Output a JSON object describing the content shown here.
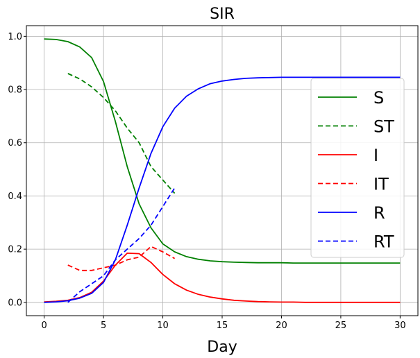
{
  "chart_data": {
    "type": "line",
    "title": "SIR",
    "xlabel": "Day",
    "ylabel": "",
    "xlim": [
      -1.5,
      31.5
    ],
    "ylim": [
      -0.05,
      1.04
    ],
    "xticks": [
      0,
      5,
      10,
      15,
      20,
      25,
      30
    ],
    "xtick_labels": [
      "0",
      "5",
      "10",
      "15",
      "20",
      "25",
      "30"
    ],
    "yticks": [
      0.0,
      0.2,
      0.4,
      0.6,
      0.8,
      1.0
    ],
    "ytick_labels": [
      "0.0",
      "0.2",
      "0.4",
      "0.6",
      "0.8",
      "1.0"
    ],
    "grid": true,
    "legend_position": "right",
    "series": [
      {
        "name": "S",
        "color": "#008000",
        "style": "solid",
        "x": [
          0,
          1,
          2,
          3,
          4,
          5,
          6,
          7,
          8,
          9,
          10,
          11,
          12,
          13,
          14,
          15,
          16,
          17,
          18,
          19,
          20,
          21,
          22,
          23,
          24,
          25,
          26,
          27,
          28,
          29,
          30
        ],
        "y": [
          0.99,
          0.988,
          0.98,
          0.96,
          0.92,
          0.83,
          0.68,
          0.51,
          0.37,
          0.28,
          0.22,
          0.19,
          0.172,
          0.162,
          0.156,
          0.153,
          0.151,
          0.15,
          0.149,
          0.149,
          0.149,
          0.148,
          0.148,
          0.148,
          0.148,
          0.148,
          0.148,
          0.148,
          0.148,
          0.148,
          0.148
        ]
      },
      {
        "name": "ST",
        "color": "#008000",
        "style": "dashed",
        "x": [
          2,
          3,
          4,
          5,
          6,
          7,
          8,
          9,
          10,
          11
        ],
        "y": [
          0.86,
          0.84,
          0.81,
          0.77,
          0.72,
          0.655,
          0.6,
          0.51,
          0.46,
          0.41
        ]
      },
      {
        "name": "I",
        "color": "#ff0000",
        "style": "solid",
        "x": [
          0,
          1,
          2,
          3,
          4,
          5,
          6,
          7,
          8,
          9,
          10,
          11,
          12,
          13,
          14,
          15,
          16,
          17,
          18,
          19,
          20,
          21,
          22,
          23,
          24,
          25,
          26,
          27,
          28,
          29,
          30
        ],
        "y": [
          0.002,
          0.004,
          0.008,
          0.018,
          0.038,
          0.08,
          0.14,
          0.185,
          0.183,
          0.15,
          0.105,
          0.07,
          0.046,
          0.03,
          0.02,
          0.013,
          0.008,
          0.005,
          0.003,
          0.002,
          0.001,
          0.001,
          0.0,
          0.0,
          0.0,
          0.0,
          0.0,
          0.0,
          0.0,
          0.0,
          0.0
        ]
      },
      {
        "name": "IT",
        "color": "#ff0000",
        "style": "dashed",
        "x": [
          2,
          3,
          4,
          5,
          6,
          7,
          8,
          9,
          10,
          11
        ],
        "y": [
          0.14,
          0.12,
          0.12,
          0.13,
          0.14,
          0.16,
          0.17,
          0.21,
          0.19,
          0.165
        ]
      },
      {
        "name": "R",
        "color": "#0000ff",
        "style": "solid",
        "x": [
          0,
          1,
          2,
          3,
          4,
          5,
          6,
          7,
          8,
          9,
          10,
          11,
          12,
          13,
          14,
          15,
          16,
          17,
          18,
          19,
          20,
          21,
          22,
          23,
          24,
          25,
          26,
          27,
          28,
          29,
          30
        ],
        "y": [
          0.0,
          0.002,
          0.006,
          0.016,
          0.034,
          0.075,
          0.16,
          0.29,
          0.43,
          0.56,
          0.66,
          0.73,
          0.775,
          0.803,
          0.822,
          0.832,
          0.838,
          0.842,
          0.844,
          0.845,
          0.846,
          0.846,
          0.846,
          0.846,
          0.846,
          0.846,
          0.846,
          0.846,
          0.846,
          0.846,
          0.846
        ]
      },
      {
        "name": "RT",
        "color": "#0000ff",
        "style": "dashed",
        "x": [
          2,
          3,
          4,
          5,
          6,
          7,
          8,
          9,
          10,
          11
        ],
        "y": [
          0.0,
          0.04,
          0.07,
          0.1,
          0.16,
          0.2,
          0.24,
          0.29,
          0.36,
          0.43
        ]
      }
    ]
  }
}
